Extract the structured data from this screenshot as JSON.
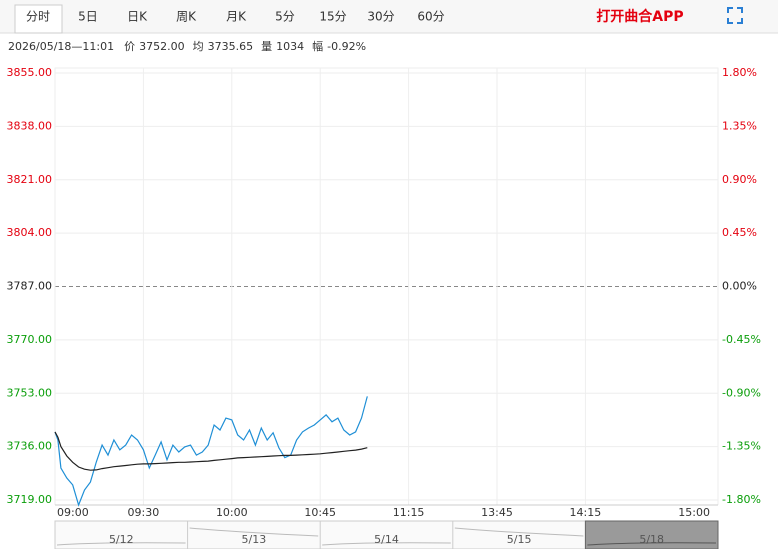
{
  "tabs": [
    "分时",
    "5日",
    "日K",
    "周K",
    "月K",
    "5分",
    "15分",
    "30分",
    "60分"
  ],
  "app_link": "打开曲合APP",
  "info": {
    "time": "2026/05/18—11:01",
    "items": [
      {
        "label": "价",
        "value": "3752.00"
      },
      {
        "label": "均",
        "value": "3735.65"
      },
      {
        "label": "量",
        "value": "1034"
      },
      {
        "label": "幅",
        "value": "-0.92%"
      }
    ]
  },
  "chart_data": {
    "type": "line",
    "x": [
      0,
      1,
      2,
      4,
      6,
      8,
      10,
      12,
      14,
      16,
      18,
      20,
      22,
      24,
      26,
      28,
      30,
      32,
      34,
      36,
      38,
      40,
      42,
      44,
      46,
      48,
      50,
      52,
      54,
      56,
      58,
      60,
      62,
      64,
      66,
      68,
      70,
      72,
      74,
      76,
      78,
      80,
      82,
      84,
      86,
      88,
      90,
      92,
      94,
      96,
      98,
      100,
      102,
      104,
      106
    ],
    "series": [
      {
        "name": "价",
        "color": "#1f8fd6",
        "values": [
          3740.7,
          3738.1,
          3729.2,
          3726,
          3723.8,
          3717.4,
          3722.2,
          3724.7,
          3731.1,
          3736.5,
          3733.3,
          3738.1,
          3735,
          3736.5,
          3739.7,
          3738.1,
          3735,
          3729.2,
          3733.3,
          3737.5,
          3731.8,
          3736.5,
          3734.3,
          3735.9,
          3736.5,
          3733.3,
          3734.3,
          3736.5,
          3742.9,
          3741.3,
          3745.1,
          3744.5,
          3739.7,
          3738.1,
          3741.3,
          3736.5,
          3741.9,
          3738.1,
          3740.4,
          3735.6,
          3732.5,
          3733.3,
          3738.1,
          3740.7,
          3741.9,
          3742.9,
          3744.5,
          3746.1,
          3743.9,
          3745.1,
          3741.3,
          3739.7,
          3740.7,
          3745.1,
          3752
        ]
      },
      {
        "name": "均",
        "color": "#222222",
        "values": [
          3740.7,
          3739,
          3736,
          3733,
          3731,
          3729.5,
          3728.8,
          3728.5,
          3728.6,
          3729,
          3729.3,
          3729.6,
          3729.8,
          3730,
          3730.2,
          3730.4,
          3730.5,
          3730.5,
          3730.6,
          3730.7,
          3730.8,
          3730.9,
          3731,
          3731,
          3731.1,
          3731.2,
          3731.3,
          3731.4,
          3731.6,
          3731.8,
          3732,
          3732.2,
          3732.4,
          3732.5,
          3732.6,
          3732.7,
          3732.8,
          3732.9,
          3733,
          3733.1,
          3733.2,
          3733.2,
          3733.3,
          3733.4,
          3733.5,
          3733.6,
          3733.7,
          3733.9,
          3734.1,
          3734.3,
          3734.5,
          3734.7,
          3734.9,
          3735.2,
          3735.65
        ]
      }
    ],
    "xlim": [
      0,
      225
    ],
    "xticks": [
      {
        "value": 0,
        "label": "09:00"
      },
      {
        "value": 30,
        "label": "09:30"
      },
      {
        "value": 60,
        "label": "10:00"
      },
      {
        "value": 90,
        "label": "10:45"
      },
      {
        "value": 120,
        "label": "11:15"
      },
      {
        "value": 150,
        "label": "13:45"
      },
      {
        "value": 180,
        "label": "14:15"
      },
      {
        "value": 225,
        "label": "15:00"
      }
    ],
    "ylim": [
      3719,
      3855
    ],
    "yticks": [
      {
        "value": 3855,
        "label": "3855.00"
      },
      {
        "value": 3838,
        "label": "3838.00"
      },
      {
        "value": 3821,
        "label": "3821.00"
      },
      {
        "value": 3804,
        "label": "3804.00"
      },
      {
        "value": 3787,
        "label": "3787.00"
      },
      {
        "value": 3770,
        "label": "3770.00"
      },
      {
        "value": 3753,
        "label": "3753.00"
      },
      {
        "value": 3736,
        "label": "3736.00"
      },
      {
        "value": 3719,
        "label": "3719.00"
      }
    ],
    "y2lim": [
      -1.8,
      1.8
    ],
    "y2ticks": [
      {
        "value": 1.8,
        "label": "1.80%"
      },
      {
        "value": 1.35,
        "label": "1.35%"
      },
      {
        "value": 0.9,
        "label": "0.90%"
      },
      {
        "value": 0.45,
        "label": "0.45%"
      },
      {
        "value": 0,
        "label": "0.00%"
      },
      {
        "value": -0.45,
        "label": "-0.45%"
      },
      {
        "value": -0.9,
        "label": "-0.90%"
      },
      {
        "value": -1.35,
        "label": "-1.35%"
      },
      {
        "value": -1.8,
        "label": "-1.80%"
      }
    ],
    "up_color": "#e4000f",
    "down_color": "#0a9e0a",
    "grid": true
  },
  "navigator": {
    "dates": [
      "5/12",
      "5/13",
      "5/14",
      "5/15",
      "5/18"
    ]
  }
}
